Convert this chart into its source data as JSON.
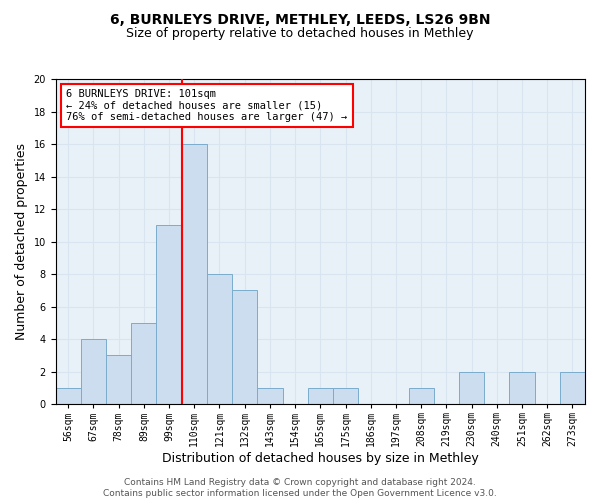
{
  "title1": "6, BURNLEYS DRIVE, METHLEY, LEEDS, LS26 9BN",
  "title2": "Size of property relative to detached houses in Methley",
  "xlabel": "Distribution of detached houses by size in Methley",
  "ylabel": "Number of detached properties",
  "bins": [
    "56sqm",
    "67sqm",
    "78sqm",
    "89sqm",
    "99sqm",
    "110sqm",
    "121sqm",
    "132sqm",
    "143sqm",
    "154sqm",
    "165sqm",
    "175sqm",
    "186sqm",
    "197sqm",
    "208sqm",
    "219sqm",
    "230sqm",
    "240sqm",
    "251sqm",
    "262sqm",
    "273sqm"
  ],
  "values": [
    1,
    4,
    3,
    5,
    11,
    16,
    8,
    7,
    1,
    0,
    1,
    1,
    0,
    0,
    1,
    0,
    2,
    0,
    2,
    0,
    2
  ],
  "bar_color": "#ccddf0",
  "bar_edge_color": "#7aaccc",
  "grid_color": "#d8e4f0",
  "background_color": "#e8f0f8",
  "red_line_x": 4.5,
  "annotation_line1": "6 BURNLEYS DRIVE: 101sqm",
  "annotation_line2": "← 24% of detached houses are smaller (15)",
  "annotation_line3": "76% of semi-detached houses are larger (47) →",
  "annotation_box_color": "white",
  "annotation_border_color": "red",
  "ylim": [
    0,
    20
  ],
  "yticks": [
    0,
    2,
    4,
    6,
    8,
    10,
    12,
    14,
    16,
    18,
    20
  ],
  "footer": "Contains HM Land Registry data © Crown copyright and database right 2024.\nContains public sector information licensed under the Open Government Licence v3.0.",
  "title_fontsize": 10,
  "subtitle_fontsize": 9,
  "tick_fontsize": 7,
  "ylabel_fontsize": 9,
  "xlabel_fontsize": 9,
  "annotation_fontsize": 7.5,
  "footer_fontsize": 6.5
}
